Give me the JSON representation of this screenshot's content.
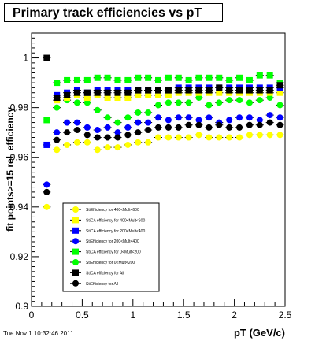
{
  "timestamp": "Tue Nov  1 10:32:46 2011",
  "chart_data": {
    "type": "scatter",
    "title": "Primary track efficiencies vs pT",
    "xlabel": "pT (GeV/c)",
    "ylabel": "fit points>=15 rel. efficiency",
    "xlim": [
      0,
      2.5
    ],
    "ylim": [
      0.9,
      1.01
    ],
    "xticks": [
      "0",
      "0.5",
      "1",
      "1.5",
      "2",
      "2.5"
    ],
    "yticks": [
      "0.9",
      "0.92",
      "0.94",
      "0.96",
      "0.98",
      "1"
    ],
    "grid": false,
    "legend_position": "bottom-center",
    "x": [
      0.15,
      0.25,
      0.35,
      0.45,
      0.55,
      0.65,
      0.75,
      0.85,
      0.95,
      1.05,
      1.15,
      1.25,
      1.35,
      1.45,
      1.55,
      1.65,
      1.75,
      1.85,
      1.95,
      2.05,
      2.15,
      2.25,
      2.35,
      2.45
    ],
    "series": [
      {
        "name": "StiCA efficiency  for 400<Mult<600",
        "marker": "square",
        "color": "#ffff00",
        "values": [
          null,
          0.983,
          0.984,
          0.985,
          0.984,
          0.985,
          0.984,
          0.984,
          0.984,
          0.985,
          0.985,
          0.985,
          0.985,
          0.986,
          0.986,
          0.986,
          0.986,
          0.986,
          0.986,
          0.986,
          0.986,
          0.986,
          0.986,
          0.986
        ]
      },
      {
        "name": "StiEfficiency  for 400<Mult<600",
        "marker": "circle",
        "color": "#ffff00",
        "values": [
          0.94,
          0.963,
          0.965,
          0.966,
          0.966,
          0.963,
          0.964,
          0.964,
          0.965,
          0.966,
          0.966,
          0.968,
          0.968,
          0.968,
          0.968,
          0.969,
          0.968,
          0.968,
          0.968,
          0.968,
          0.969,
          0.969,
          0.969,
          0.969
        ]
      },
      {
        "name": "StiCA efficiency  for 200<Mult<400",
        "marker": "square",
        "color": "#0000ff",
        "values": [
          0.965,
          0.985,
          0.986,
          0.987,
          0.986,
          0.987,
          0.987,
          0.987,
          0.987,
          0.987,
          0.987,
          0.987,
          0.987,
          0.988,
          0.988,
          0.988,
          0.988,
          0.988,
          0.988,
          0.988,
          0.988,
          0.988,
          0.988,
          0.988
        ]
      },
      {
        "name": "StiEfficiency  for 200<Mult<400",
        "marker": "circle",
        "color": "#0000ff",
        "values": [
          0.949,
          0.97,
          0.974,
          0.974,
          0.972,
          0.971,
          0.972,
          0.97,
          0.972,
          0.974,
          0.974,
          0.976,
          0.975,
          0.976,
          0.976,
          0.975,
          0.976,
          0.974,
          0.975,
          0.976,
          0.976,
          0.975,
          0.977,
          0.976
        ]
      },
      {
        "name": "StiCA efficiency  for 0<Mult<200",
        "marker": "square",
        "color": "#00ff00",
        "values": [
          0.975,
          0.99,
          0.991,
          0.991,
          0.991,
          0.992,
          0.992,
          0.991,
          0.991,
          0.992,
          0.992,
          0.991,
          0.992,
          0.992,
          0.991,
          0.992,
          0.992,
          0.992,
          0.991,
          0.992,
          0.991,
          0.993,
          0.993,
          0.99
        ]
      },
      {
        "name": "StiEfficiency  for 0<Mult<200",
        "marker": "circle",
        "color": "#00ff00",
        "values": [
          null,
          0.98,
          0.983,
          0.982,
          0.982,
          0.979,
          0.976,
          0.974,
          0.976,
          0.978,
          0.978,
          0.981,
          0.982,
          0.982,
          0.982,
          0.984,
          0.981,
          0.982,
          0.983,
          0.983,
          0.982,
          0.983,
          0.984,
          0.981
        ]
      },
      {
        "name": "StiCA efficiency  for All",
        "marker": "square",
        "color": "#000000",
        "values": [
          1.0,
          0.984,
          0.985,
          0.986,
          0.986,
          0.986,
          0.986,
          0.986,
          0.986,
          0.987,
          0.987,
          0.987,
          0.987,
          0.987,
          0.987,
          0.987,
          0.987,
          0.988,
          0.987,
          0.987,
          0.987,
          0.987,
          0.987,
          0.989
        ]
      },
      {
        "name": "StiEfficiency  for All",
        "marker": "circle",
        "color": "#000000",
        "values": [
          0.946,
          0.967,
          0.97,
          0.971,
          0.969,
          0.968,
          0.968,
          0.968,
          0.969,
          0.97,
          0.971,
          0.972,
          0.972,
          0.972,
          0.973,
          0.973,
          0.972,
          0.973,
          0.972,
          0.972,
          0.973,
          0.973,
          0.974,
          0.973
        ]
      }
    ],
    "legend_order": [
      1,
      0,
      2,
      3,
      4,
      5,
      6,
      7
    ]
  }
}
